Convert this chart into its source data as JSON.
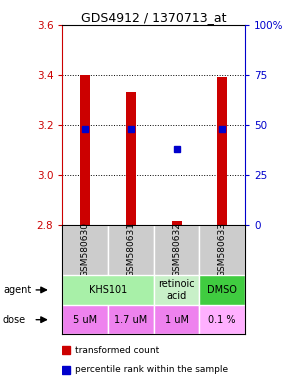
{
  "title": "GDS4912 / 1370713_at",
  "samples": [
    "GSM580630",
    "GSM580631",
    "GSM580632",
    "GSM580633"
  ],
  "bar_bottoms": [
    2.8,
    2.8,
    2.8,
    2.8
  ],
  "bar_tops": [
    3.4,
    3.33,
    2.815,
    3.39
  ],
  "percentile_values": [
    3.185,
    3.185,
    3.105,
    3.185
  ],
  "ylim": [
    2.8,
    3.6
  ],
  "yticks_left": [
    2.8,
    3.0,
    3.2,
    3.4,
    3.6
  ],
  "yticks_right": [
    0,
    25,
    50,
    75,
    100
  ],
  "yticks_right_pct": [
    "0",
    "25",
    "50",
    "75",
    "100%"
  ],
  "agent_configs": [
    [
      0,
      2,
      "KHS101",
      "#a8f0a8"
    ],
    [
      2,
      3,
      "retinoic\nacid",
      "#c8f0c8"
    ],
    [
      3,
      4,
      "DMSO",
      "#40cc40"
    ]
  ],
  "dose_labels": [
    "5 uM",
    "1.7 uM",
    "1 uM",
    "0.1 %"
  ],
  "dose_colors": [
    "#ee82ee",
    "#ee82ee",
    "#ee82ee",
    "#ffb0ff"
  ],
  "sample_bg_color": "#cccccc",
  "bar_color": "#cc0000",
  "percentile_color": "#0000cc",
  "left_axis_color": "#cc0000",
  "right_axis_color": "#0000cc",
  "grid_yticks": [
    3.0,
    3.2,
    3.4
  ]
}
